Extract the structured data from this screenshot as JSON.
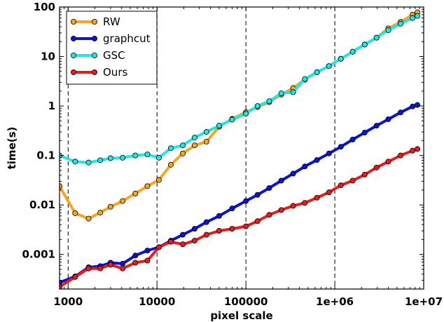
{
  "chart_data": {
    "type": "line",
    "xlabel": "pixel scale",
    "ylabel": "time(s)",
    "x_scale": "log",
    "y_scale": "log",
    "xlim": [
      800,
      10000000
    ],
    "ylim": [
      0.0002,
      100
    ],
    "x_ticks": [
      {
        "value": 1000,
        "label": "1000"
      },
      {
        "value": 10000,
        "label": "10000"
      },
      {
        "value": 100000,
        "label": "100000"
      },
      {
        "value": 1000000,
        "label": "1e+06"
      },
      {
        "value": 10000000,
        "label": "1e+07"
      }
    ],
    "y_ticks": [
      {
        "value": 0.001,
        "label": "0.001"
      },
      {
        "value": 0.01,
        "label": "0.01"
      },
      {
        "value": 0.1,
        "label": "0.1"
      },
      {
        "value": 1,
        "label": "1"
      },
      {
        "value": 10,
        "label": "10"
      },
      {
        "value": 100,
        "label": "100"
      }
    ],
    "grid": "vertical dashed at x decades",
    "legend_position": "top-left",
    "series": [
      {
        "name": "RW",
        "color": "#f5a623",
        "x": [
          800,
          1200,
          1700,
          2300,
          3000,
          4100,
          5700,
          7800,
          10500,
          14300,
          19500,
          26500,
          36000,
          50000,
          70000,
          100000,
          135000,
          183000,
          250000,
          340000,
          460000,
          630000,
          860000,
          1170000,
          1590000,
          2170000,
          2950000,
          4000000,
          5500000,
          7500000,
          8500000
        ],
        "y": [
          0.024,
          0.0068,
          0.0053,
          0.007,
          0.0092,
          0.012,
          0.017,
          0.024,
          0.032,
          0.065,
          0.11,
          0.16,
          0.19,
          0.38,
          0.55,
          0.75,
          0.95,
          1.2,
          1.7,
          2.3,
          3.4,
          4.8,
          6.4,
          9.0,
          12.5,
          17.5,
          24.0,
          37.0,
          50.0,
          70.0,
          78.0
        ]
      },
      {
        "name": "graphcut",
        "color": "#0a14d2",
        "x": [
          800,
          1200,
          1700,
          2300,
          3000,
          4100,
          5700,
          7800,
          10500,
          14300,
          19500,
          26500,
          36000,
          50000,
          70000,
          100000,
          135000,
          183000,
          250000,
          340000,
          460000,
          630000,
          860000,
          1170000,
          1590000,
          2170000,
          2950000,
          4000000,
          5500000,
          7500000,
          8500000
        ],
        "y": [
          0.00027,
          0.00036,
          0.00055,
          0.00058,
          0.00068,
          0.00065,
          0.00095,
          0.0012,
          0.0014,
          0.0019,
          0.0025,
          0.0033,
          0.0045,
          0.006,
          0.0085,
          0.012,
          0.016,
          0.022,
          0.031,
          0.043,
          0.06,
          0.081,
          0.11,
          0.15,
          0.21,
          0.29,
          0.4,
          0.54,
          0.74,
          0.98,
          1.05
        ]
      },
      {
        "name": "GSC",
        "color": "#22e6e6",
        "x": [
          800,
          1200,
          1700,
          2300,
          3000,
          4100,
          5700,
          7800,
          10500,
          14300,
          19500,
          26500,
          36000,
          50000,
          70000,
          100000,
          135000,
          183000,
          250000,
          340000,
          460000,
          630000,
          860000,
          1170000,
          1590000,
          2170000,
          2950000,
          4000000,
          5500000,
          7500000,
          8500000
        ],
        "y": [
          0.1,
          0.075,
          0.072,
          0.08,
          0.088,
          0.09,
          0.1,
          0.105,
          0.09,
          0.14,
          0.16,
          0.23,
          0.3,
          0.4,
          0.53,
          0.7,
          1.0,
          1.25,
          1.8,
          1.9,
          3.5,
          4.8,
          6.4,
          9.0,
          12.5,
          17.5,
          24.0,
          34.0,
          46.0,
          60.0,
          66.0
        ]
      },
      {
        "name": "Ours",
        "color": "#e81c1c",
        "x": [
          800,
          1200,
          1700,
          2300,
          3000,
          4100,
          5700,
          7800,
          10500,
          14300,
          19500,
          26500,
          36000,
          50000,
          70000,
          100000,
          135000,
          183000,
          250000,
          340000,
          460000,
          630000,
          860000,
          1170000,
          1590000,
          2170000,
          2950000,
          4000000,
          5500000,
          7500000,
          8500000
        ],
        "y": [
          0.00022,
          0.00035,
          0.00052,
          0.00052,
          0.00062,
          0.00052,
          0.00068,
          0.00075,
          0.0014,
          0.0018,
          0.0016,
          0.0019,
          0.0025,
          0.003,
          0.0033,
          0.0037,
          0.0047,
          0.0063,
          0.0079,
          0.0096,
          0.011,
          0.014,
          0.018,
          0.025,
          0.031,
          0.041,
          0.057,
          0.075,
          0.1,
          0.125,
          0.135
        ]
      }
    ]
  }
}
